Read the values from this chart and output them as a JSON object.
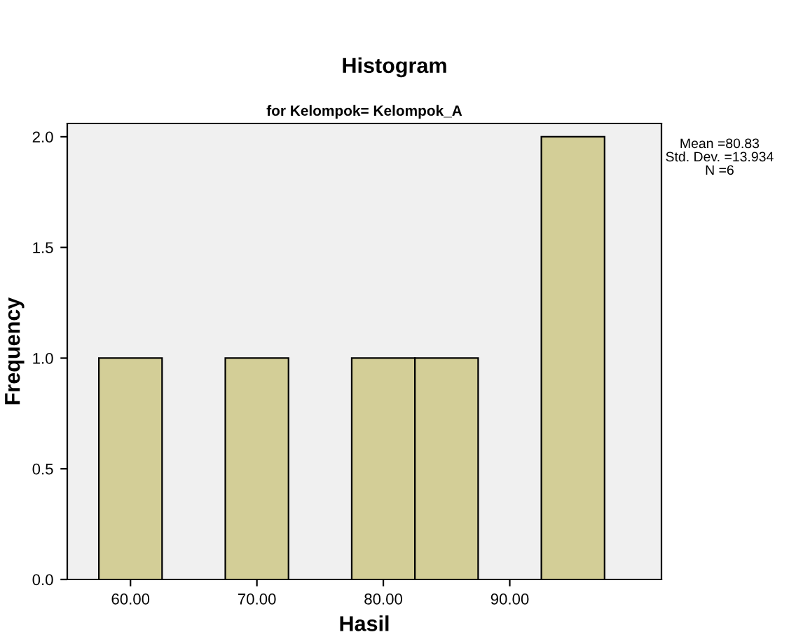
{
  "chart_data": {
    "type": "histogram",
    "title": "Histogram",
    "subtitle": "for Kelompok= Kelompok_A",
    "xlabel": "Hasil",
    "ylabel": "Frequency",
    "bins": [
      57.5,
      62.5,
      67.5,
      72.5,
      77.5,
      82.5,
      87.5,
      92.5,
      97.5
    ],
    "values": [
      1,
      0,
      1,
      0,
      1,
      1,
      0,
      2
    ],
    "color": "#d3ce97",
    "xlim": [
      55,
      102
    ],
    "ylim": [
      0,
      2.06
    ],
    "xticks": [
      {
        "value": 60,
        "label": "60.00"
      },
      {
        "value": 70,
        "label": "70.00"
      },
      {
        "value": 80,
        "label": "80.00"
      },
      {
        "value": 90,
        "label": "90.00"
      }
    ],
    "yticks": [
      {
        "value": 0,
        "label": "0.0"
      },
      {
        "value": 0.5,
        "label": "0.5"
      },
      {
        "value": 1.0,
        "label": "1.0"
      },
      {
        "value": 1.5,
        "label": "1.5"
      },
      {
        "value": 2.0,
        "label": "2.0"
      }
    ],
    "annotations": [
      "Mean =80.83",
      "Std. Dev. =13.934",
      "N =6"
    ],
    "grid": false,
    "legend": false
  }
}
